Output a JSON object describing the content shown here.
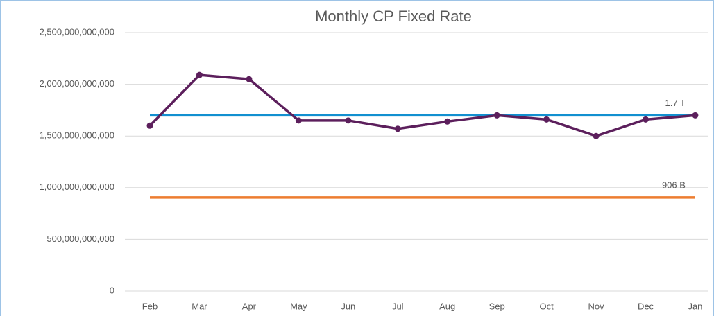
{
  "chart_data": {
    "type": "line",
    "title": "Monthly CP Fixed Rate",
    "categories": [
      "Feb",
      "Mar",
      "Apr",
      "May",
      "Jun",
      "Jul",
      "Aug",
      "Sep",
      "Oct",
      "Nov",
      "Dec",
      "Jan"
    ],
    "series": [
      {
        "color": "#5c1f5c",
        "markers": true,
        "values": [
          1600000000000,
          2090000000000,
          2050000000000,
          1650000000000,
          1650000000000,
          1570000000000,
          1640000000000,
          1700000000000,
          1660000000000,
          1500000000000,
          1660000000000,
          1700000000000
        ]
      },
      {
        "color": "#1290d0",
        "markers": false,
        "values": [
          1700000000000,
          1700000000000,
          1700000000000,
          1700000000000,
          1700000000000,
          1700000000000,
          1700000000000,
          1700000000000,
          1700000000000,
          1700000000000,
          1700000000000,
          1700000000000
        ],
        "value_labels": [
          null,
          null,
          null,
          null,
          null,
          null,
          null,
          null,
          null,
          null,
          null,
          "1.7 T"
        ]
      },
      {
        "color": "#ed7d31",
        "markers": false,
        "values": [
          906000000000,
          906000000000,
          906000000000,
          906000000000,
          906000000000,
          906000000000,
          906000000000,
          906000000000,
          906000000000,
          906000000000,
          906000000000,
          906000000000
        ],
        "value_labels": [
          null,
          null,
          null,
          null,
          null,
          null,
          null,
          null,
          null,
          null,
          null,
          "906 B"
        ]
      }
    ],
    "ylim": [
      0,
      2500000000000
    ],
    "yticks": [
      0,
      {
        "value": 500000000000,
        "label": "500,000,000,000"
      },
      {
        "value": 1000000000000,
        "label": "1,000,000,000,000"
      },
      {
        "value": 1500000000000,
        "label": "1,500,000,000,000"
      },
      {
        "value": 2000000000000,
        "label": "2,000,000,000,000"
      },
      {
        "value": 2500000000000,
        "label": "2,500,000,000,000"
      }
    ],
    "grid": true
  }
}
